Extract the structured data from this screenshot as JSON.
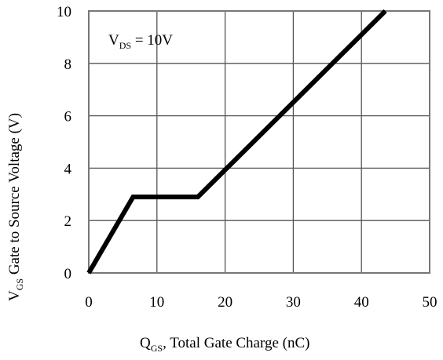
{
  "chart_data": {
    "type": "line",
    "xlabel": {
      "main": "Q",
      "sub": "GS",
      "rest": ",  Total Gate Charge (nC)"
    },
    "ylabel": {
      "main": "V",
      "sub": "GS",
      "rest": " Gate to Source Voltage (V)"
    },
    "annotation": {
      "main": "V",
      "sub": "DS",
      "rest": " = 10V"
    },
    "xlim": [
      0,
      50
    ],
    "ylim": [
      0,
      10
    ],
    "xticks": [
      0,
      10,
      20,
      30,
      40,
      50
    ],
    "yticks": [
      0,
      2,
      4,
      6,
      8,
      10
    ],
    "grid": true,
    "series": [
      {
        "x": [
          0,
          6.5,
          16,
          43.5
        ],
        "y": [
          0,
          2.9,
          2.9,
          10
        ]
      }
    ]
  }
}
